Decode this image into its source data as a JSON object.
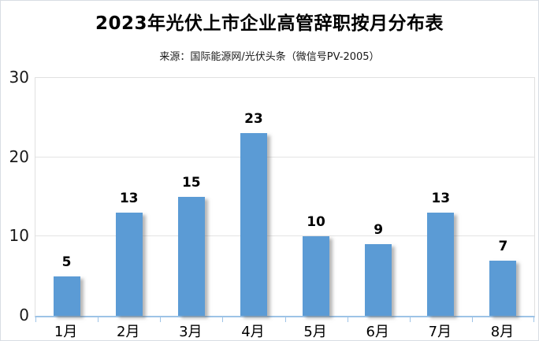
{
  "chart_data": {
    "type": "bar",
    "title": "2023年光伏上市企业高管辞职按月分布表",
    "subtitle": "来源：国际能源网/光伏头条（微信号PV-2005）",
    "categories": [
      "1月",
      "2月",
      "3月",
      "4月",
      "5月",
      "6月",
      "7月",
      "8月"
    ],
    "values": [
      5,
      13,
      15,
      23,
      10,
      9,
      13,
      7
    ],
    "xlabel": "",
    "ylabel": "",
    "ylim": [
      0,
      30
    ],
    "yticks": [
      0,
      10,
      20,
      30
    ],
    "grid": true,
    "legend": false,
    "data_labels": true,
    "colors": {
      "bar": "#5B9BD5",
      "axis": "#9DC3E6",
      "gridline": "#e4e4e4",
      "plot_border": "#e0e0e0",
      "value_label": "#000000",
      "tick_text": "#1a1a1a",
      "background": "#ffffff"
    }
  }
}
